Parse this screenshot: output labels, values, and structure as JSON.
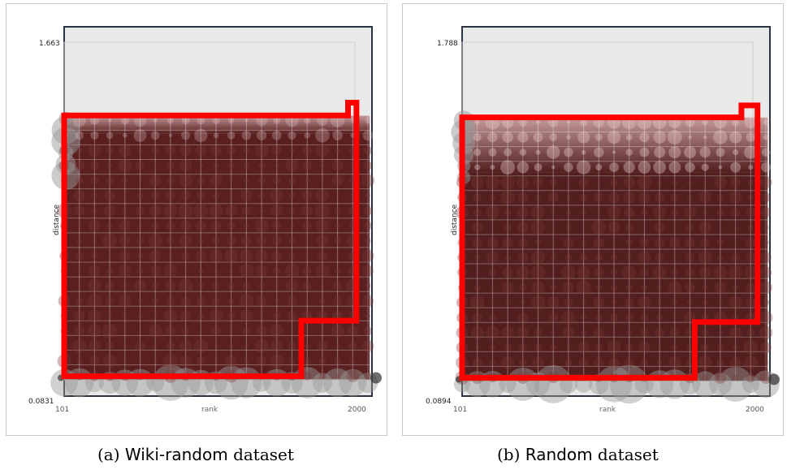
{
  "chart_data": [
    {
      "type": "scatter",
      "xlabel": "rank",
      "ylabel": "distance",
      "x_ticks": [
        "101",
        "2000"
      ],
      "y_ticks": [
        "0.0831",
        "1.663"
      ],
      "xlim": [
        101,
        2000
      ],
      "ylim": [
        0.0831,
        1.663
      ],
      "caption": {
        "prefix": "(a) ",
        "name": "Wiki-random",
        "suffix": " dataset"
      },
      "colors": {
        "points_dark": "#5a2020",
        "points_light": "#999999",
        "outline": "#ff0000",
        "background": "#e9e9e9"
      },
      "outline": [
        [
          101,
          1.32
        ],
        [
          1955,
          1.32
        ],
        [
          1955,
          1.38
        ],
        [
          2010,
          1.38
        ],
        [
          2010,
          0.36
        ],
        [
          1650,
          0.36
        ],
        [
          1650,
          0.1
        ],
        [
          101,
          0.1
        ]
      ]
    },
    {
      "type": "scatter",
      "xlabel": "rank",
      "ylabel": "distance",
      "x_ticks": [
        "101",
        "2000"
      ],
      "y_ticks": [
        "0.0894",
        "1.788"
      ],
      "xlim": [
        101,
        2000
      ],
      "ylim": [
        0.0894,
        1.788
      ],
      "caption": {
        "prefix": "(b) ",
        "name": "Random",
        "suffix": " dataset"
      },
      "colors": {
        "points_dark": "#521e1e",
        "points_light": "#999999",
        "outline": "#ff0000",
        "background": "#e9e9e9"
      },
      "outline": [
        [
          101,
          1.41
        ],
        [
          1925,
          1.41
        ],
        [
          1925,
          1.47
        ],
        [
          2030,
          1.47
        ],
        [
          2030,
          0.38
        ],
        [
          1620,
          0.38
        ],
        [
          1620,
          0.1
        ],
        [
          101,
          0.1
        ]
      ]
    }
  ]
}
